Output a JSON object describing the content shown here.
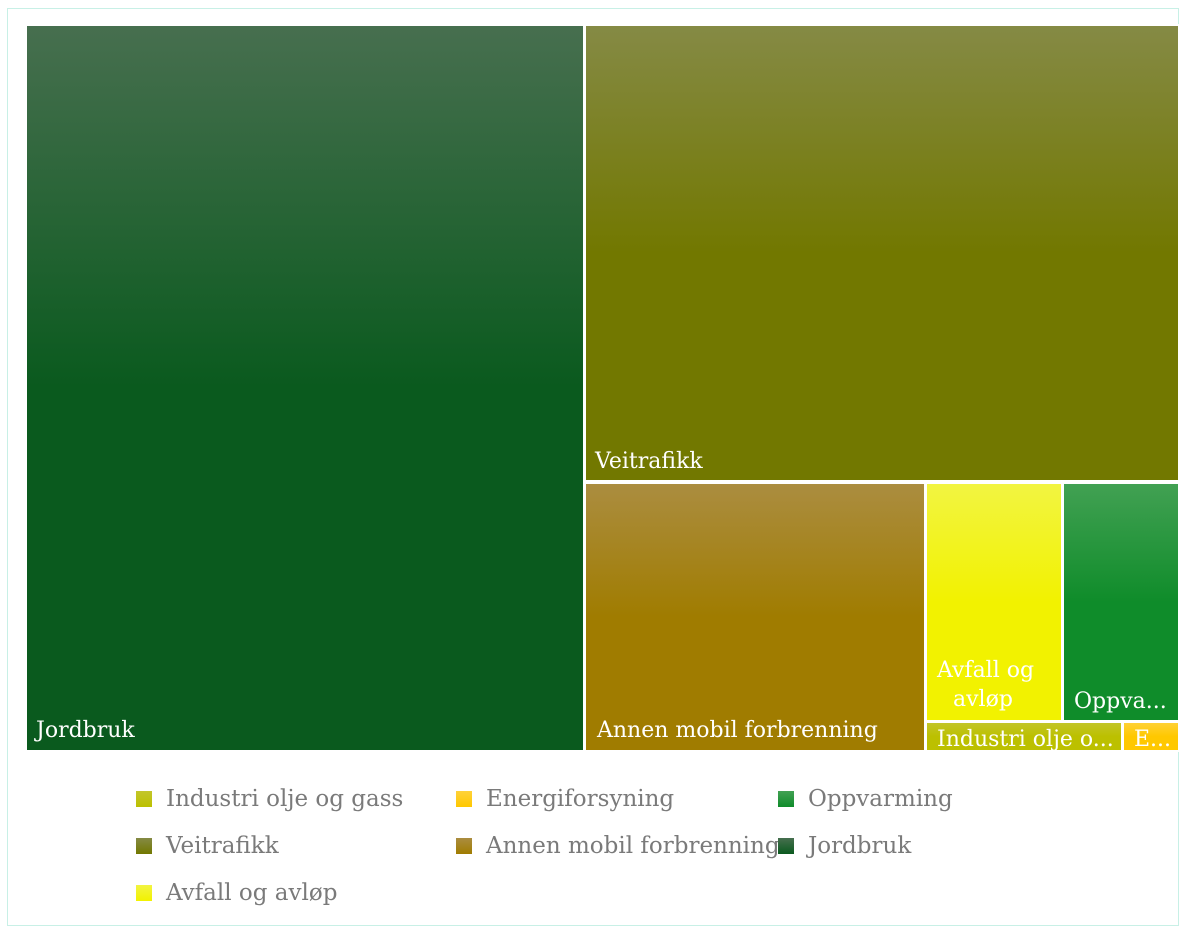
{
  "chart_data": {
    "type": "treemap",
    "title": "",
    "items": [
      {
        "label": "Jordbruk",
        "value": 47.6,
        "color": "#0a5a1e",
        "shown_label": "Jordbruk"
      },
      {
        "label": "Veitrafikk",
        "value": 31.9,
        "color": "#727800",
        "shown_label": "Veitrafikk"
      },
      {
        "label": "Annen mobil forbrenning",
        "value": 11.6,
        "color": "#a07c00",
        "shown_label": "Annen mobil forbrenning"
      },
      {
        "label": "Avfall og avløp",
        "value": 4.0,
        "color": "#f2f200",
        "shown_label": "Avfall og avløp"
      },
      {
        "label": "Oppvarming",
        "value": 3.0,
        "color": "#0f8c2a",
        "shown_label": "Oppva..."
      },
      {
        "label": "Industri  olje og gass",
        "value": 1.4,
        "color": "#bcc000",
        "shown_label": "Industri  olje o..."
      },
      {
        "label": "Energiforsyning",
        "value": 0.5,
        "color": "#ffc800",
        "shown_label": "E..."
      }
    ]
  },
  "legend": {
    "items": [
      {
        "label": "Industri  olje og gass",
        "color": "#bcc000"
      },
      {
        "label": "Energiforsyning",
        "color": "#ffc800"
      },
      {
        "label": "Oppvarming",
        "color": "#0f8c2a"
      },
      {
        "label": "Veitrafikk",
        "color": "#727800"
      },
      {
        "label": "Annen mobil forbrenning",
        "color": "#a07c00"
      },
      {
        "label": "Jordbruk",
        "color": "#0a5a1e"
      },
      {
        "label": "Avfall og avløp",
        "color": "#f2f200"
      }
    ]
  }
}
